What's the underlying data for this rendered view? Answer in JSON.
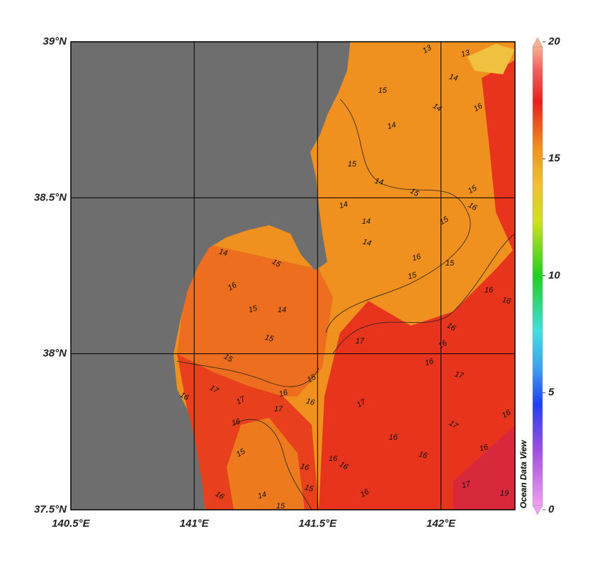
{
  "map": {
    "xlim": [
      140.5,
      142.3
    ],
    "ylim": [
      37.5,
      39
    ],
    "xticks": [
      {
        "value": 140.5,
        "label": "140.5°E"
      },
      {
        "value": 141,
        "label": "141°E"
      },
      {
        "value": 141.5,
        "label": "141.5°E"
      },
      {
        "value": 142,
        "label": "142°E"
      }
    ],
    "yticks": [
      {
        "value": 37.5,
        "label": "37.5°N"
      },
      {
        "value": 38,
        "label": "38°N"
      },
      {
        "value": 38.5,
        "label": "38.5°N"
      },
      {
        "value": 39,
        "label": "39°N"
      }
    ],
    "colorbar": {
      "lim": [
        0,
        20
      ],
      "ticks": [
        0,
        5,
        10,
        15,
        20
      ]
    },
    "watermark": "Ocean Data View",
    "contour_labels": [
      13,
      13,
      15,
      14,
      14,
      16,
      14,
      15,
      14,
      15,
      15,
      14,
      14,
      14,
      16,
      15,
      16,
      15,
      14,
      15,
      16,
      15,
      14,
      15,
      15,
      15,
      15,
      16,
      16,
      16,
      16,
      16,
      17,
      17,
      17,
      17,
      16,
      17,
      16,
      16,
      17,
      16,
      16,
      16,
      17,
      16,
      16,
      16,
      16,
      16,
      15,
      14,
      15,
      15,
      16,
      16,
      17,
      19
    ]
  }
}
